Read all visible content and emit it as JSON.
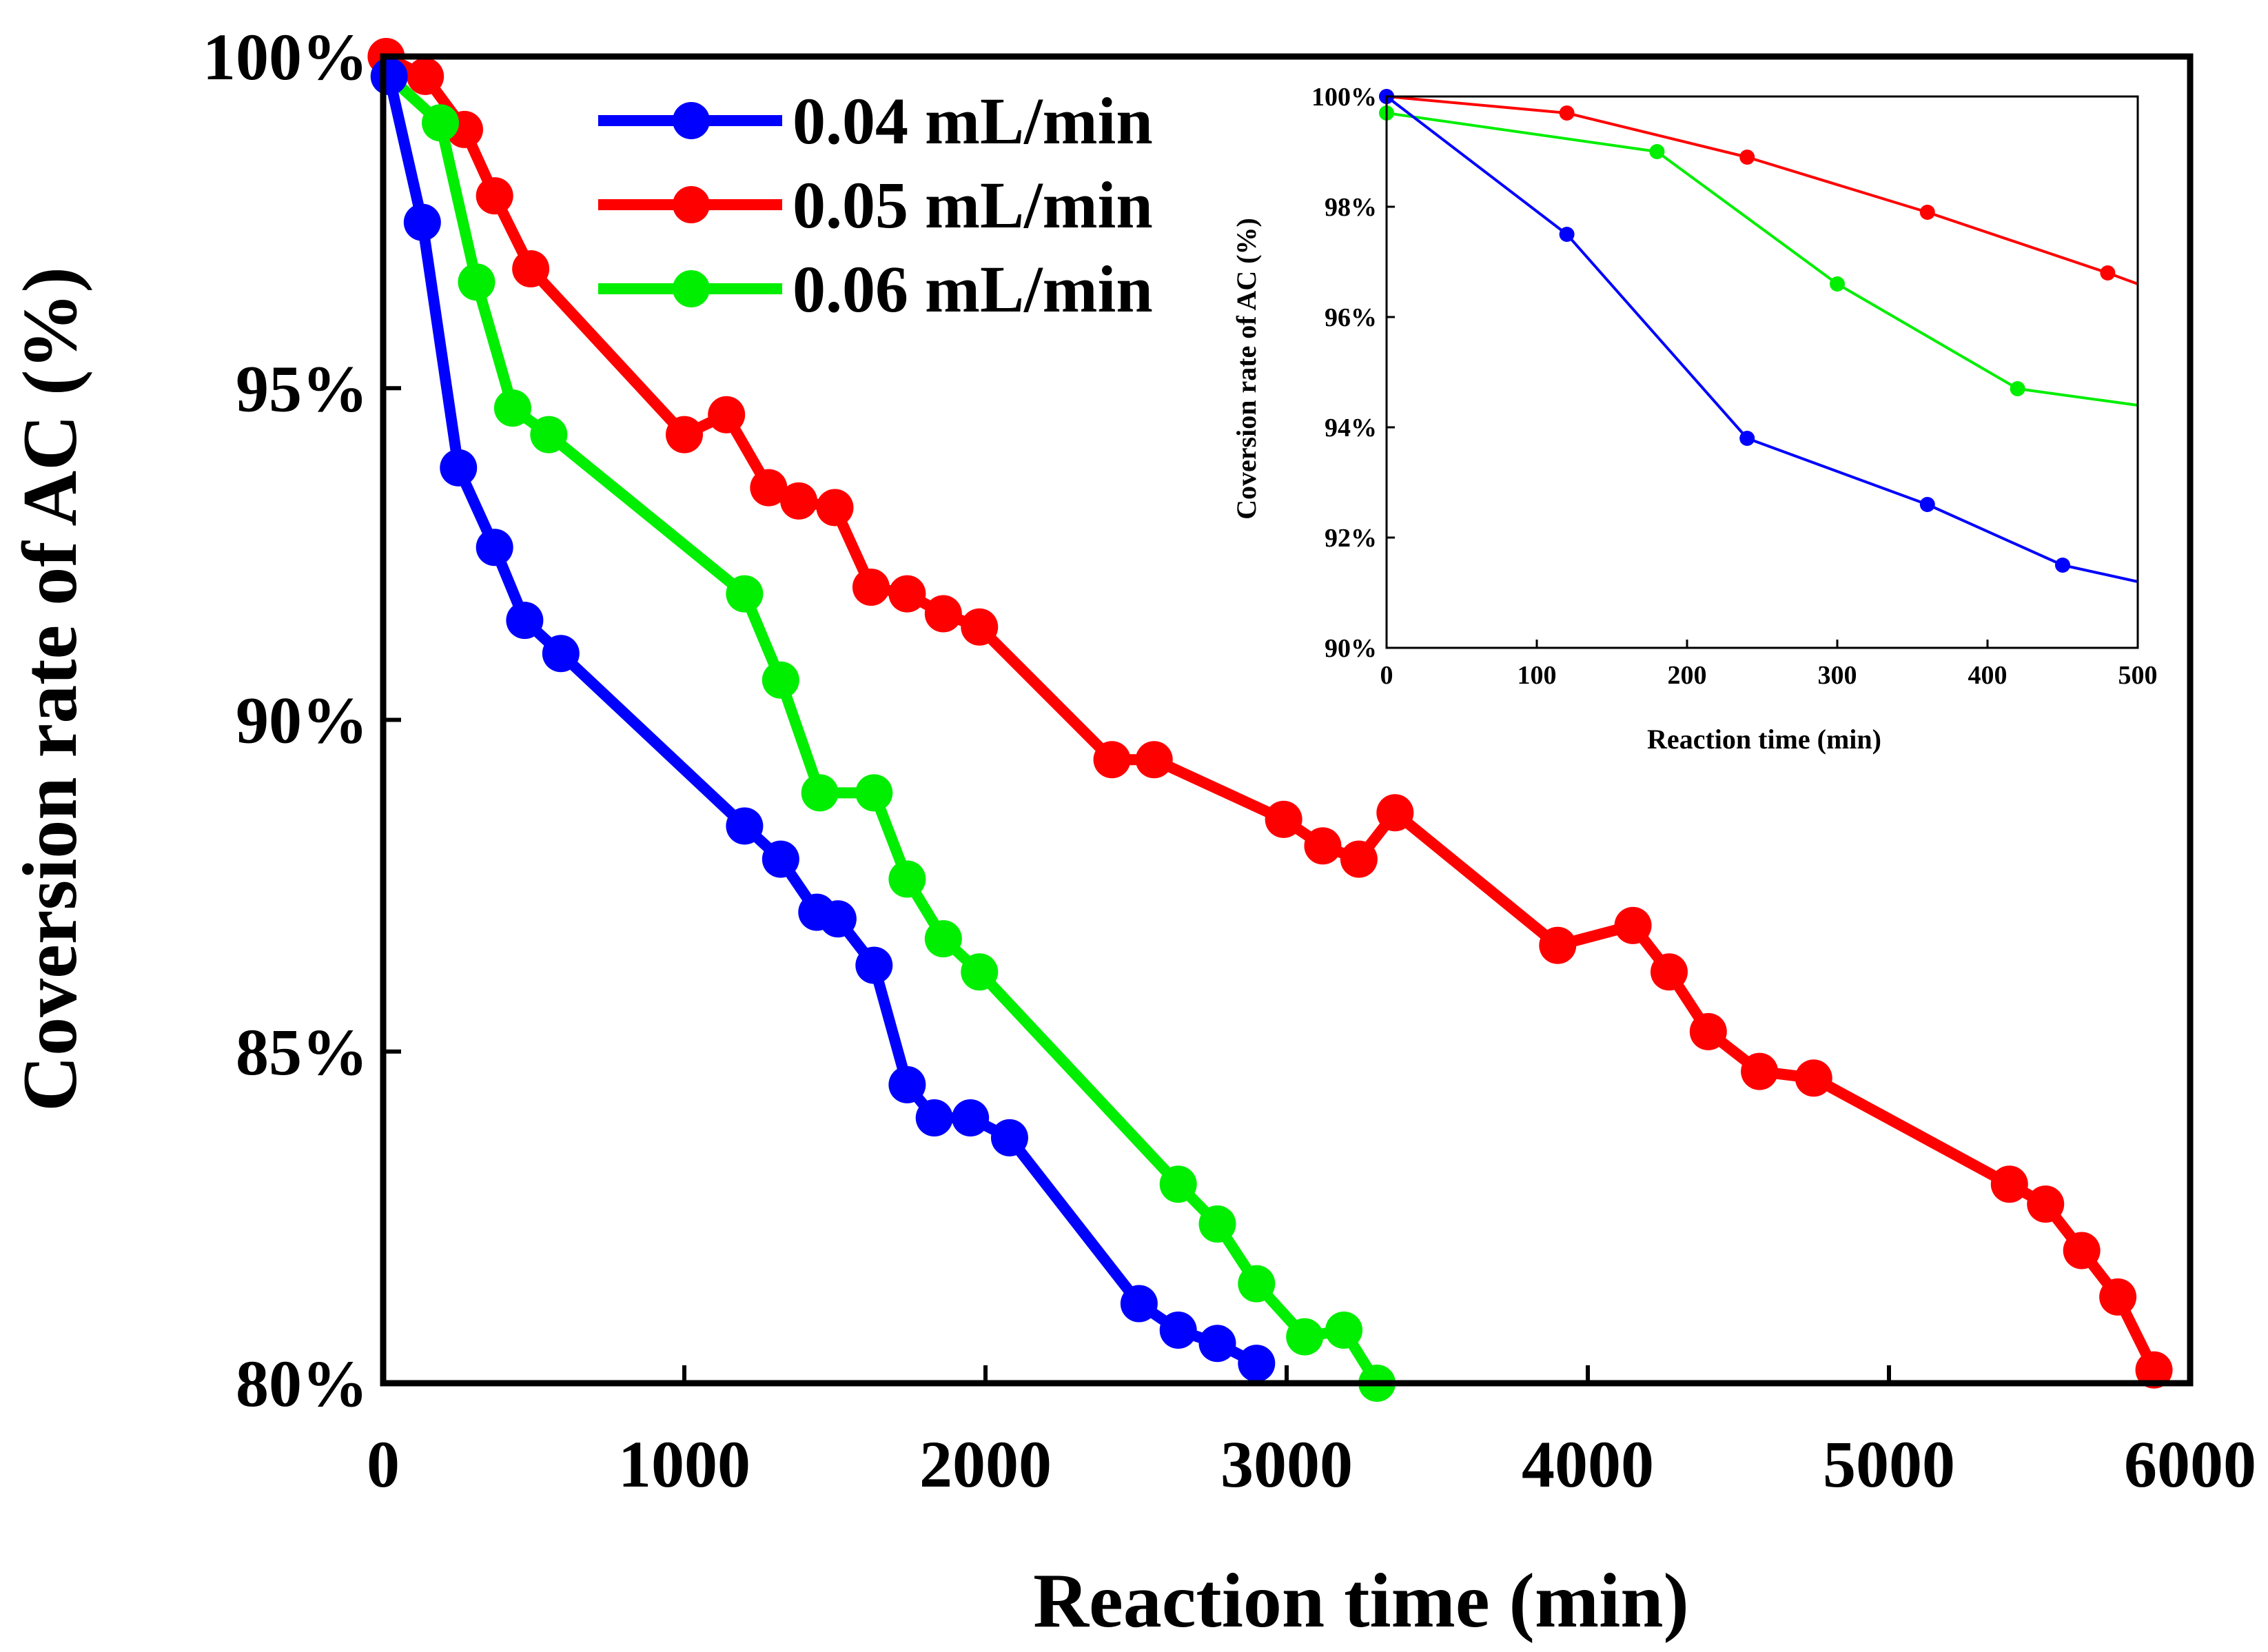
{
  "chart_data": [
    {
      "name": "main",
      "type": "line",
      "xlabel": "Reaction time (min)",
      "ylabel": "Coversion rate of AC (%)",
      "xlim": [
        0,
        6000
      ],
      "ylim": [
        80,
        100
      ],
      "xticks": [
        "0",
        "1000",
        "2000",
        "3000",
        "4000",
        "5000",
        "6000"
      ],
      "yticks": [
        "80%",
        "85%",
        "90%",
        "95%",
        "100%"
      ],
      "legend_position": "top-left",
      "series": [
        {
          "name": "0.04 mL/min",
          "color": "#0000ff",
          "x": [
            20,
            130,
            250,
            370,
            470,
            590,
            1200,
            1320,
            1440,
            1510,
            1630,
            1740,
            1830,
            1950,
            2080,
            2510,
            2640,
            2770,
            2900
          ],
          "y": [
            99.7,
            97.5,
            93.8,
            92.6,
            91.5,
            91.0,
            88.4,
            87.9,
            87.1,
            87.0,
            86.3,
            84.5,
            84.0,
            84.0,
            83.7,
            81.2,
            80.8,
            80.6,
            80.3
          ]
        },
        {
          "name": "0.05 mL/min",
          "color": "#ff0000",
          "x": [
            10,
            140,
            270,
            370,
            490,
            1000,
            1140,
            1280,
            1380,
            1500,
            1620,
            1740,
            1860,
            1980,
            2420,
            2560,
            2990,
            3120,
            3240,
            3360,
            3900,
            4150,
            4270,
            4400,
            4570,
            4750,
            5400,
            5520,
            5640,
            5760,
            5880
          ],
          "y": [
            100.0,
            99.7,
            98.9,
            97.9,
            96.8,
            94.3,
            94.6,
            93.5,
            93.3,
            93.2,
            92.0,
            91.9,
            91.6,
            91.4,
            89.4,
            89.4,
            88.5,
            88.1,
            87.9,
            88.6,
            86.6,
            86.9,
            86.2,
            85.3,
            84.7,
            84.6,
            83.0,
            82.7,
            82.0,
            81.3,
            80.2
          ]
        },
        {
          "name": "0.06 mL/min",
          "color": "#00ee00",
          "x": [
            20,
            190,
            310,
            430,
            550,
            1200,
            1320,
            1450,
            1630,
            1740,
            1860,
            1980,
            2640,
            2770,
            2900,
            3060,
            3190,
            3300
          ],
          "y": [
            99.7,
            99.0,
            96.6,
            94.7,
            94.3,
            91.9,
            90.6,
            88.9,
            88.9,
            87.6,
            86.7,
            86.2,
            83.0,
            82.4,
            81.5,
            80.7,
            80.8,
            80.0
          ]
        }
      ]
    },
    {
      "name": "inset",
      "type": "line",
      "xlabel": "Reaction time (min)",
      "ylabel": "Coversion rate of AC (%)",
      "xlim": [
        0,
        500
      ],
      "ylim": [
        90,
        100
      ],
      "xticks": [
        "0",
        "100",
        "200",
        "300",
        "400",
        "500"
      ],
      "yticks": [
        "90%",
        "92%",
        "94%",
        "96%",
        "98%",
        "100%"
      ],
      "series": [
        {
          "name": "0.04 mL/min",
          "color": "#0000ff",
          "x": [
            0,
            120,
            240,
            360,
            450,
            500
          ],
          "y": [
            100.0,
            97.5,
            93.8,
            92.6,
            91.5,
            91.2
          ]
        },
        {
          "name": "0.05 mL/min",
          "color": "#ff0000",
          "x": [
            0,
            120,
            240,
            360,
            480,
            500
          ],
          "y": [
            100.0,
            99.7,
            98.9,
            97.9,
            96.8,
            96.6
          ]
        },
        {
          "name": "0.06 mL/min",
          "color": "#00ee00",
          "x": [
            0,
            180,
            300,
            420,
            500
          ],
          "y": [
            99.7,
            99.0,
            96.6,
            94.7,
            94.4
          ]
        }
      ]
    }
  ]
}
